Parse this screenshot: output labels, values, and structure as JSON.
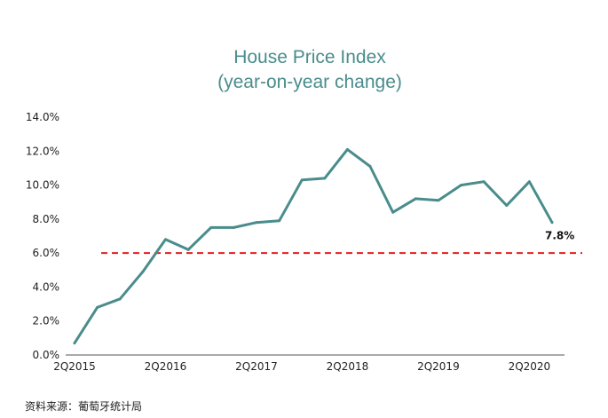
{
  "chart_data": {
    "type": "line",
    "title": "House Price Index",
    "subtitle": "(year-on-year change)",
    "xlabel": "",
    "ylabel": "",
    "x": [
      "2Q2015",
      "3Q2015",
      "4Q2015",
      "1Q2016",
      "2Q2016",
      "3Q2016",
      "4Q2016",
      "1Q2017",
      "2Q2017",
      "3Q2017",
      "4Q2017",
      "1Q2018",
      "2Q2018",
      "3Q2018",
      "4Q2018",
      "1Q2019",
      "2Q2019",
      "3Q2019",
      "4Q2019",
      "1Q2020",
      "2Q2020",
      "3Q2020"
    ],
    "x_tick_labels": [
      "2Q2015",
      "2Q2016",
      "2Q2017",
      "2Q2018",
      "2Q2019",
      "2Q2020"
    ],
    "series": [
      {
        "values": [
          0.7,
          2.8,
          3.3,
          4.9,
          6.8,
          6.2,
          7.5,
          7.5,
          7.8,
          7.9,
          10.3,
          10.4,
          12.1,
          11.1,
          8.4,
          9.2,
          9.1,
          10.0,
          10.2,
          8.8,
          10.2,
          7.8
        ]
      }
    ],
    "reference_line": {
      "y": 6.0,
      "style": "dashed",
      "color": "#e02020"
    },
    "end_label": "7.8%",
    "ylim": [
      0,
      14
    ],
    "y_ticks": [
      "0.0%",
      "2.0%",
      "4.0%",
      "6.0%",
      "8.0%",
      "10.0%",
      "12.0%",
      "14.0%"
    ],
    "line_color": "#4a8c8c",
    "grid": false
  },
  "source_note": "资料来源：葡萄牙统计局"
}
